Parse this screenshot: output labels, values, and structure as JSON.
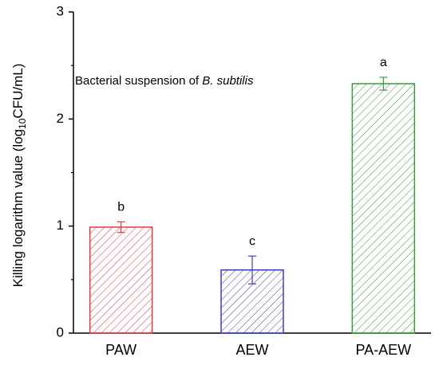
{
  "chart_data": {
    "type": "bar",
    "ylabel": {
      "text": "Killing logarithm value (log",
      "subscript": "10",
      "suffix": "CFU/mL)"
    },
    "annotation": {
      "text": "Bacterial suspension of ",
      "italic": "B. subtilis"
    },
    "categories": [
      "PAW",
      "AEW",
      "PA-AEW"
    ],
    "values": [
      0.99,
      0.59,
      2.33
    ],
    "errors": [
      0.05,
      0.13,
      0.06
    ],
    "significance": [
      "b",
      "c",
      "a"
    ],
    "colors": [
      "#e8393e",
      "#3b3bd0",
      "#3a9c3a"
    ],
    "hatch": true,
    "ylim": [
      0,
      3
    ],
    "yticks": [
      0,
      1,
      2,
      3
    ],
    "yminorticks": [
      0.5,
      1.5,
      2.5
    ]
  }
}
